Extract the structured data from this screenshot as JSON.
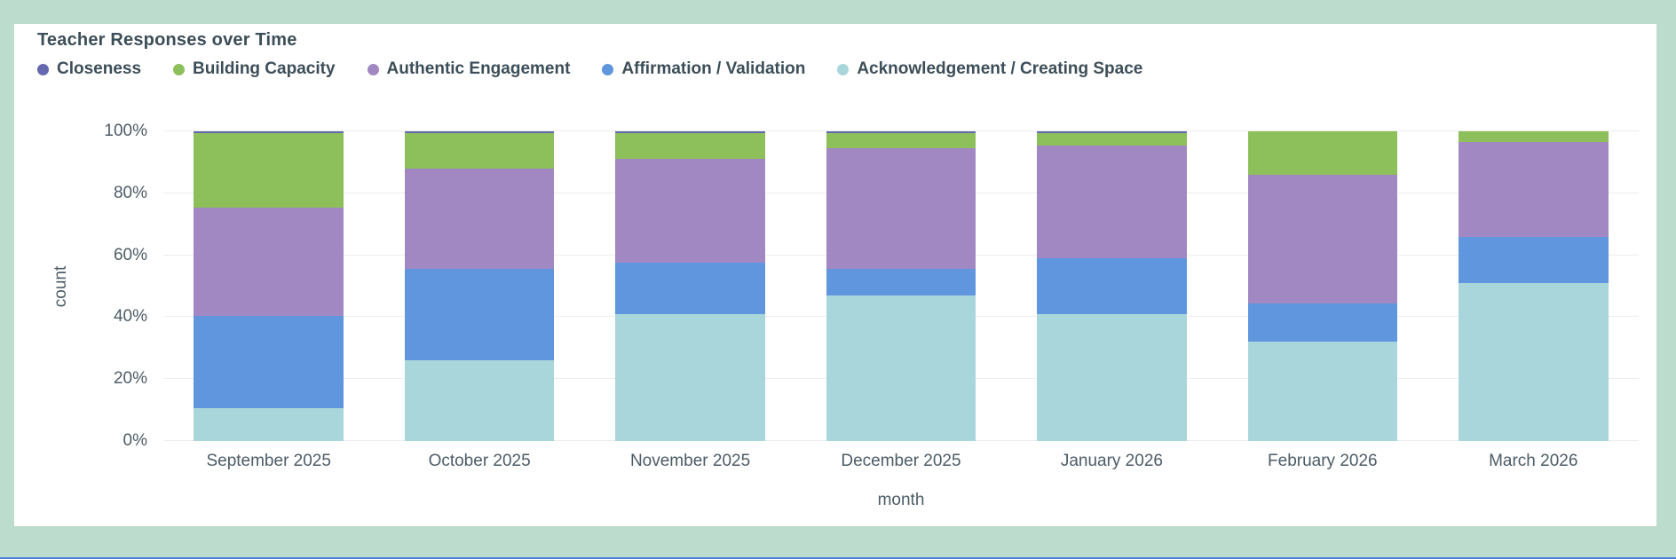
{
  "chart_data": {
    "type": "bar",
    "stacked": true,
    "percent_axis": true,
    "title": "Teacher Responses over Time",
    "xlabel": "month",
    "ylabel": "count",
    "ylim": [
      0,
      100
    ],
    "yticks": [
      0,
      20,
      40,
      60,
      80,
      100
    ],
    "ytick_labels": [
      "0%",
      "20%",
      "40%",
      "60%",
      "80%",
      "100%"
    ],
    "grid": true,
    "legend_position": "top",
    "categories": [
      "September 2025",
      "October 2025",
      "November 2025",
      "December 2025",
      "January 2026",
      "February 2026",
      "March 2026"
    ],
    "series": [
      {
        "name": "Acknowledgement / Creating Space",
        "color": "#a9d6da",
        "values": [
          10.5,
          26,
          41,
          47,
          41,
          32,
          51
        ]
      },
      {
        "name": "Affirmation / Validation",
        "color": "#5f96de",
        "values": [
          30,
          29.5,
          16.5,
          8.5,
          18,
          12.5,
          15
        ]
      },
      {
        "name": "Authentic Engagement",
        "color": "#a288c2",
        "values": [
          35,
          32.5,
          33.5,
          39,
          36.5,
          41.5,
          30.5
        ]
      },
      {
        "name": "Building Capacity",
        "color": "#8dbf5b",
        "values": [
          24,
          11.5,
          8.5,
          5,
          4,
          14,
          3.5
        ]
      },
      {
        "name": "Closeness",
        "color": "#6468ae",
        "values": [
          0.5,
          0.5,
          0.5,
          0.5,
          0.5,
          0,
          0
        ]
      }
    ],
    "legend_order_note": "legend shown top-of-stack first: Closeness, Building Capacity, Authentic Engagement, Affirmation / Validation, Acknowledgement / Creating Space"
  },
  "colors": {
    "page_background": "#bcdccd",
    "card_background": "#ffffff",
    "title_text": "#3c4e58",
    "axis_text": "#4c5c66",
    "gridline": "#ededed",
    "bottom_strip": "#4a86d8"
  }
}
